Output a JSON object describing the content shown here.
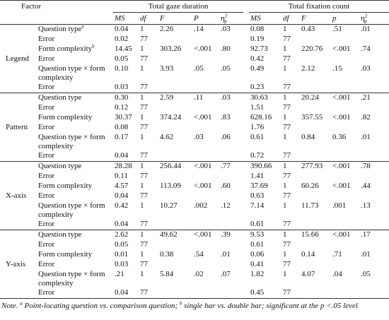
{
  "header": {
    "factor": "Factor",
    "groups": [
      "Total gaze duration",
      "Total fixation count"
    ],
    "columns": [
      {
        "text": "MS"
      },
      {
        "text": "df"
      },
      {
        "text": "F"
      },
      {
        "text": "P"
      },
      {
        "symbol": "η",
        "sup": "2",
        "sub": "p"
      },
      {
        "text": "MS"
      },
      {
        "text": "df"
      },
      {
        "text": "F"
      },
      {
        "text": "p"
      },
      {
        "symbol": "η",
        "sup": "2",
        "sub": "p"
      }
    ]
  },
  "groups": [
    {
      "name": "Legend",
      "rows": [
        {
          "label": "Question type",
          "sup": "a",
          "gaze": [
            "0.04",
            "1",
            "2.26",
            ".14",
            ".03"
          ],
          "fixation": [
            "0.08",
            "1",
            "0.43",
            ".51",
            ".01"
          ]
        },
        {
          "label": "Error",
          "gaze": [
            "0.02",
            "77"
          ],
          "fixation": [
            "0.19",
            "77"
          ]
        },
        {
          "label": "Form complexity",
          "sup": "b",
          "gaze": [
            "14.45",
            "1",
            "303.26",
            "<.001",
            ".80"
          ],
          "fixation": [
            "92.73",
            "1",
            "220.76",
            "<.001",
            ".74"
          ]
        },
        {
          "label": "Error",
          "gaze": [
            "0.05",
            "77"
          ],
          "fixation": [
            "0.42",
            "77"
          ]
        },
        {
          "label": "Question type × form complexity",
          "gaze": [
            "0.10",
            "1",
            "3.93",
            ".05",
            ".05"
          ],
          "fixation": [
            "0.49",
            "1",
            "2.12",
            ".15",
            ".03"
          ]
        },
        {
          "label": "Error",
          "gaze": [
            "0.03",
            "77"
          ],
          "fixation": [
            "0.23",
            "77"
          ]
        }
      ]
    },
    {
      "name": "Pattern",
      "rows": [
        {
          "label": "Question type",
          "gaze": [
            "0.30",
            "1",
            "2.59",
            ".11",
            ".03"
          ],
          "fixation": [
            "30.63",
            "1",
            "20.24",
            "<.001",
            ".21"
          ]
        },
        {
          "label": "Error",
          "gaze": [
            "0.12",
            "77"
          ],
          "fixation": [
            "1.51",
            "77"
          ]
        },
        {
          "label": "Form complexity",
          "gaze": [
            "30.37",
            "1",
            "374.24",
            "<.001",
            ".83"
          ],
          "fixation": [
            "628.16",
            "1",
            "357.55",
            "<.001",
            ".82"
          ]
        },
        {
          "label": "Error",
          "gaze": [
            "0.08",
            "77"
          ],
          "fixation": [
            "1.76",
            "77"
          ]
        },
        {
          "label": "Question type × form complexity",
          "gaze": [
            "0.17",
            "1",
            "4.62",
            ".03",
            ".06"
          ],
          "fixation": [
            "0.61",
            "1",
            "0.84",
            "0.36",
            ".01"
          ]
        },
        {
          "label": "Error",
          "gaze": [
            "0.04",
            "77"
          ],
          "fixation": [
            "0.72",
            "77"
          ]
        }
      ]
    },
    {
      "name": "X-axis",
      "rows": [
        {
          "label": "Question type",
          "gaze": [
            "28.28",
            "1",
            "256.44",
            "<.001",
            ".77"
          ],
          "fixation": [
            "390.66",
            "1",
            "277.93",
            "<.001",
            ".78"
          ]
        },
        {
          "label": "Error",
          "gaze": [
            "0.11",
            "77"
          ],
          "fixation": [
            "1.41",
            "77"
          ]
        },
        {
          "label": "Form complexity",
          "gaze": [
            "4.57",
            "1",
            "113.09",
            "<.001",
            ".60"
          ],
          "fixation": [
            "37.69",
            "1",
            "60.26",
            "<.001",
            ".44"
          ]
        },
        {
          "label": "Error",
          "gaze": [
            "0.04",
            "77"
          ],
          "fixation": [
            "0.63",
            "77"
          ]
        },
        {
          "label": "Question type × form complexity",
          "gaze": [
            "0.42",
            "1",
            "10.27",
            ".002",
            ".12"
          ],
          "fixation": [
            "7.14",
            "1",
            "11.73",
            ".001",
            ".13"
          ]
        },
        {
          "label": "Error",
          "gaze": [
            "0.04",
            "77"
          ],
          "fixation": [
            "0.61",
            "77"
          ]
        }
      ]
    },
    {
      "name": "Y-axis",
      "rows": [
        {
          "label": "Question type",
          "gaze": [
            "2.62",
            "1",
            "49.62",
            "<.001",
            ".39"
          ],
          "fixation": [
            "9.53",
            "1",
            "15.66",
            "<.001",
            ".17"
          ]
        },
        {
          "label": "Error",
          "gaze": [
            "0.05",
            "77"
          ],
          "fixation": [
            "0.61",
            "77"
          ]
        },
        {
          "label": "Form complexity",
          "gaze": [
            "0.01",
            "1",
            "0.38",
            ".54",
            ".01"
          ],
          "fixation": [
            "0.06",
            "1",
            "0.14",
            ".71",
            ".01"
          ]
        },
        {
          "label": "Error",
          "gaze": [
            "0.03",
            "77"
          ],
          "fixation": [
            "0.41",
            "77"
          ]
        },
        {
          "label": "Question type × form complexity",
          "gaze": [
            ".21",
            "1",
            "5.84",
            ".02",
            ".07"
          ],
          "fixation": [
            "1.82",
            "1",
            "4.07",
            ".04",
            ".05"
          ]
        },
        {
          "label": "Error",
          "gaze": [
            "0.04",
            "77"
          ],
          "fixation": [
            "0.45",
            "77"
          ]
        }
      ]
    }
  ],
  "note": {
    "lead": "Note.",
    "sup_a": "a",
    "text_a": "Point-locating question vs. comparison question;",
    "sup_b": "b",
    "text_b": "single bar vs. double bar; significant at the p <.05 level"
  }
}
